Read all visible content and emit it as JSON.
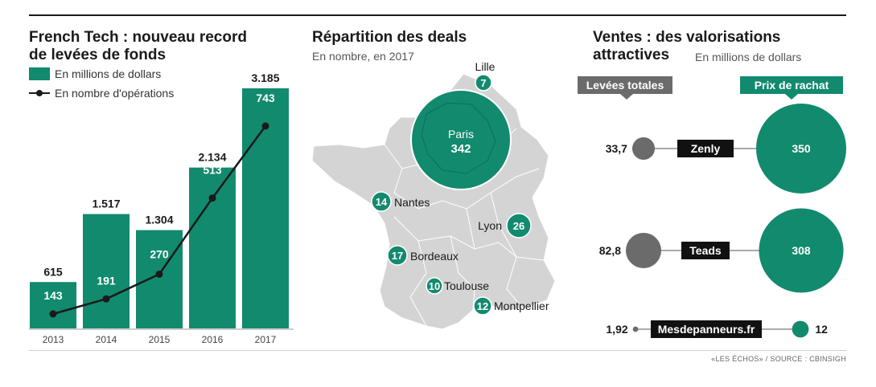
{
  "panels": {
    "left": {
      "title_line1": "French Tech : nouveau record",
      "title_line2": "de levées de fonds",
      "legend": [
        {
          "label": "En millions de dollars"
        },
        {
          "label": "En nombre d'opérations"
        }
      ]
    },
    "middle": {
      "title": "Répartition des deals",
      "subtitle": "En nombre, en 2017"
    },
    "right": {
      "title_line1": "Ventes : des valorisations",
      "title_line2": "attractives",
      "subtitle": "En millions de dollars",
      "tag_left": "Levées totales",
      "tag_right": "Prix de rachat"
    }
  },
  "chart_data": [
    {
      "type": "bar",
      "categories": [
        "2013",
        "2014",
        "2015",
        "2016",
        "2017"
      ],
      "series": [
        {
          "name": "En millions de dollars",
          "values": [
            615,
            1517,
            1304,
            2134,
            3185
          ],
          "labels": [
            "615",
            "1.517",
            "1.304",
            "2.134",
            "3.185"
          ]
        },
        {
          "name": "En nombre d'opérations",
          "type": "line",
          "values": [
            143,
            191,
            270,
            513,
            743
          ],
          "labels": [
            "143",
            "191",
            "270",
            "513",
            "743"
          ]
        }
      ],
      "ylim": [
        0,
        3185
      ],
      "colors": {
        "bar": "#128a6e",
        "line": "#1a1a1a"
      }
    },
    {
      "type": "map",
      "cities": [
        {
          "name": "Lille",
          "value": 7
        },
        {
          "name": "Paris",
          "value": 342
        },
        {
          "name": "Nantes",
          "value": 14
        },
        {
          "name": "Lyon",
          "value": 26
        },
        {
          "name": "Bordeaux",
          "value": 17
        },
        {
          "name": "Toulouse",
          "value": 10
        },
        {
          "name": "Montpellier",
          "value": 12
        }
      ],
      "colors": {
        "map": "#d4d4d4",
        "bubble": "#128a6e"
      }
    },
    {
      "type": "bubble",
      "companies": [
        {
          "name": "Zenly",
          "raised": 33.7,
          "raised_label": "33,7",
          "price": 350,
          "price_label": "350"
        },
        {
          "name": "Teads",
          "raised": 82.8,
          "raised_label": "82,8",
          "price": 308,
          "price_label": "308"
        },
        {
          "name": "Mesdepanneurs.fr",
          "raised": 1.92,
          "raised_label": "1,92",
          "price": 12,
          "price_label": "12"
        }
      ],
      "colors": {
        "raised": "#6b6b6b",
        "price": "#128a6e"
      }
    }
  ],
  "source": "«LES ÉCHOS» / SOURCE : CBINSIGH"
}
